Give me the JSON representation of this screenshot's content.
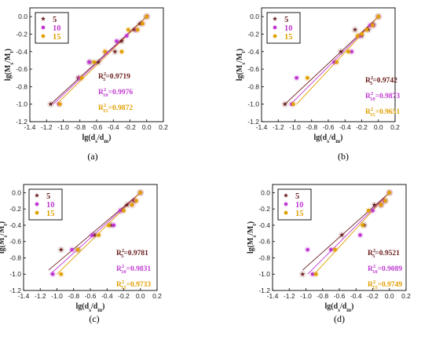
{
  "colors": {
    "5": "#6b1c1c",
    "10": "#c03ad2",
    "15": "#e0a000"
  },
  "chart_data": [
    {
      "type": "scatter",
      "caption": "(a)",
      "xlabel": "lg(d_s/d_m)",
      "ylabel": "lg(M_s/M_t)",
      "xlim": [
        -1.4,
        0.2
      ],
      "ylim": [
        -1.2,
        0.1
      ],
      "xticks": [
        -1.4,
        -1.2,
        -1.0,
        -0.8,
        -0.6,
        -0.4,
        -0.2,
        0.0,
        0.2
      ],
      "yticks": [
        -1.2,
        -1.0,
        -0.8,
        -0.6,
        -0.4,
        -0.2,
        0.0
      ],
      "legend": "top-left",
      "series": [
        {
          "name": "5",
          "color_key": "5",
          "marker": "star",
          "r2_sub": "5",
          "r2_value": "0.9719",
          "x": [
            0.0,
            -0.08,
            -0.15,
            -0.3,
            -0.38,
            -0.58,
            -0.68,
            -0.82,
            -1.15
          ],
          "y": [
            0.0,
            -0.08,
            -0.15,
            -0.28,
            -0.4,
            -0.52,
            -0.52,
            -0.7,
            -1.0
          ],
          "fit": [
            [
              -1.15,
              -1.0
            ],
            [
              0.02,
              0.02
            ]
          ]
        },
        {
          "name": "10",
          "color_key": "10",
          "marker": "circle",
          "r2_sub": "10",
          "r2_value": "0.9976",
          "x": [
            0.0,
            -0.05,
            -0.12,
            -0.24,
            -0.36,
            -0.49,
            -0.69,
            -0.8,
            -1.05
          ],
          "y": [
            0.0,
            -0.08,
            -0.15,
            -0.22,
            -0.28,
            -0.41,
            -0.52,
            -0.7,
            -1.0
          ],
          "fit": [
            [
              -1.12,
              -1.0
            ],
            [
              0.0,
              0.0
            ]
          ]
        },
        {
          "name": "15",
          "color_key": "15",
          "marker": "circle",
          "r2_sub": "15",
          "r2_value": "0.9872",
          "x": [
            0.0,
            -0.05,
            -0.11,
            -0.22,
            -0.3,
            -0.5,
            -0.63,
            -0.78,
            -1.04
          ],
          "y": [
            0.0,
            -0.08,
            -0.15,
            -0.15,
            -0.4,
            -0.4,
            -0.52,
            -0.7,
            -1.0
          ],
          "fit": [
            [
              -1.08,
              -1.0
            ],
            [
              0.0,
              0.0
            ]
          ]
        }
      ]
    },
    {
      "type": "scatter",
      "caption": "(b)",
      "xlabel": "lg(d_s/d_m)",
      "ylabel": "lg(M_s/M_t)",
      "xlim": [
        -1.4,
        0.2
      ],
      "ylim": [
        -1.2,
        0.1
      ],
      "xticks": [
        -1.4,
        -1.2,
        -1.0,
        -0.8,
        -0.6,
        -0.4,
        -0.2,
        0.0,
        0.2
      ],
      "yticks": [
        -1.2,
        -1.0,
        -0.8,
        -0.6,
        -0.4,
        -0.2,
        0.0
      ],
      "legend": "top-left",
      "series": [
        {
          "name": "5",
          "color_key": "5",
          "marker": "star",
          "r2_sub": "5",
          "r2_value": "0.9742",
          "x": [
            0.0,
            -0.06,
            -0.12,
            -0.2,
            -0.28,
            -0.45,
            -1.12
          ],
          "y": [
            0.0,
            -0.09,
            -0.15,
            -0.22,
            -0.15,
            -0.4,
            -1.0
          ],
          "fit": [
            [
              -1.12,
              -1.0
            ],
            [
              0.0,
              0.0
            ]
          ]
        },
        {
          "name": "10",
          "color_key": "10",
          "marker": "circle",
          "r2_sub": "10",
          "r2_value": "0.9873",
          "x": [
            0.0,
            -0.06,
            -0.1,
            -0.22,
            -0.32,
            -0.53,
            -0.98,
            -1.04
          ],
          "y": [
            0.0,
            -0.1,
            -0.1,
            -0.22,
            -0.4,
            -0.52,
            -0.7,
            -1.0
          ],
          "fit": [
            [
              -1.05,
              -1.0
            ],
            [
              0.0,
              0.0
            ]
          ]
        },
        {
          "name": "15",
          "color_key": "15",
          "marker": "circle",
          "r2_sub": "15",
          "r2_value": "0.9651",
          "x": [
            0.0,
            -0.07,
            -0.14,
            -0.2,
            -0.25,
            -0.36,
            -0.5,
            -0.85,
            -1.02
          ],
          "y": [
            0.0,
            -0.1,
            -0.15,
            -0.2,
            -0.22,
            -0.4,
            -0.52,
            -0.7,
            -1.0
          ],
          "fit": [
            [
              -0.98,
              -1.0
            ],
            [
              0.0,
              0.0
            ]
          ]
        }
      ]
    },
    {
      "type": "scatter",
      "caption": "(c)",
      "xlabel": "lg(d_s/d_m)",
      "ylabel": "lg(M_s/M_t)",
      "xlim": [
        -1.4,
        0.2
      ],
      "ylim": [
        -1.2,
        0.1
      ],
      "xticks": [
        -1.4,
        -1.2,
        -1.0,
        -0.8,
        -0.6,
        -0.4,
        -0.2,
        0.0,
        0.2
      ],
      "yticks": [
        -1.2,
        -1.0,
        -0.8,
        -0.6,
        -0.4,
        -0.2,
        0.0
      ],
      "legend": "top-left",
      "series": [
        {
          "name": "5",
          "color_key": "5",
          "marker": "star",
          "r2_sub": "5",
          "r2_value": "0.9781",
          "x": [
            0.0,
            -0.08,
            -0.16,
            -0.22,
            -0.35,
            -0.55,
            -0.75,
            -0.95
          ],
          "y": [
            0.0,
            -0.1,
            -0.15,
            -0.22,
            -0.4,
            -0.52,
            -0.7,
            -0.7
          ],
          "fit": [
            [
              -1.1,
              -0.95
            ],
            [
              0.0,
              0.0
            ]
          ]
        },
        {
          "name": "10",
          "color_key": "10",
          "marker": "circle",
          "r2_sub": "10",
          "r2_value": "0.9831",
          "x": [
            0.0,
            -0.06,
            -0.1,
            -0.24,
            -0.32,
            -0.58,
            -0.82,
            -1.05
          ],
          "y": [
            0.0,
            -0.1,
            -0.15,
            -0.22,
            -0.4,
            -0.52,
            -0.7,
            -1.0
          ],
          "fit": [
            [
              -1.08,
              -1.0
            ],
            [
              0.0,
              0.0
            ]
          ]
        },
        {
          "name": "15",
          "color_key": "15",
          "marker": "circle",
          "r2_sub": "15",
          "r2_value": "0.9733",
          "x": [
            0.0,
            -0.05,
            -0.1,
            -0.2,
            -0.38,
            -0.5,
            -0.75,
            -0.95
          ],
          "y": [
            0.0,
            -0.1,
            -0.15,
            -0.22,
            -0.4,
            -0.52,
            -0.7,
            -1.0
          ],
          "fit": [
            [
              -1.0,
              -1.0
            ],
            [
              0.0,
              0.0
            ]
          ]
        }
      ]
    },
    {
      "type": "scatter",
      "caption": "(d)",
      "xlabel": "lg(d_s/d_m)",
      "ylabel": "lg(M_s/M_t)",
      "xlim": [
        -1.4,
        0.2
      ],
      "ylim": [
        -1.2,
        0.1
      ],
      "xticks": [
        -1.4,
        -1.2,
        -1.0,
        -0.8,
        -0.6,
        -0.4,
        -0.2,
        0.0,
        0.2
      ],
      "yticks": [
        -1.2,
        -1.0,
        -0.8,
        -0.6,
        -0.4,
        -0.2,
        0.0
      ],
      "legend": "top-left",
      "series": [
        {
          "name": "5",
          "color_key": "5",
          "marker": "star",
          "r2_sub": "5",
          "r2_value": "0.9521",
          "x": [
            0.0,
            -0.05,
            -0.1,
            -0.18,
            -0.3,
            -0.57,
            -1.04
          ],
          "y": [
            0.0,
            -0.1,
            -0.15,
            -0.15,
            -0.4,
            -0.52,
            -1.0
          ],
          "fit": [
            [
              -1.04,
              -0.95
            ],
            [
              0.0,
              0.0
            ]
          ]
        },
        {
          "name": "10",
          "color_key": "10",
          "marker": "circle",
          "r2_sub": "10",
          "r2_value": "0.9089",
          "x": [
            0.0,
            -0.06,
            -0.1,
            -0.2,
            -0.35,
            -0.7,
            -0.98,
            -0.92
          ],
          "y": [
            0.0,
            -0.1,
            -0.15,
            -0.22,
            -0.52,
            -0.7,
            -0.7,
            -1.0
          ],
          "fit": [
            [
              -0.98,
              -1.0
            ],
            [
              0.0,
              0.0
            ]
          ]
        },
        {
          "name": "15",
          "color_key": "15",
          "marker": "circle",
          "r2_sub": "15",
          "r2_value": "0.9749",
          "x": [
            0.0,
            -0.05,
            -0.1,
            -0.25,
            -0.32,
            -0.65,
            -0.88
          ],
          "y": [
            0.0,
            -0.1,
            -0.15,
            -0.22,
            -0.4,
            -0.7,
            -1.0
          ],
          "fit": [
            [
              -0.9,
              -1.0
            ],
            [
              0.0,
              0.0
            ]
          ]
        }
      ]
    }
  ]
}
